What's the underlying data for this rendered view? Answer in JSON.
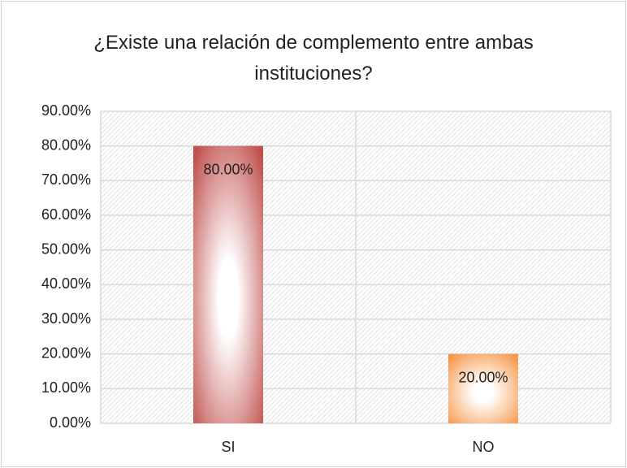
{
  "chart_data": {
    "type": "bar",
    "title": "¿Existe una relación de complemento entre ambas instituciones?",
    "categories": [
      "SI",
      "NO"
    ],
    "values": [
      80,
      20
    ],
    "value_labels": [
      "80.00%",
      "20.00%"
    ],
    "colors": [
      "#c0504d",
      "#f79646"
    ],
    "ylim": [
      0,
      90
    ],
    "yticks": [
      {
        "value": 0,
        "label": "0.00%"
      },
      {
        "value": 10,
        "label": "10.00%"
      },
      {
        "value": 20,
        "label": "20.00%"
      },
      {
        "value": 30,
        "label": "30.00%"
      },
      {
        "value": 40,
        "label": "40.00%"
      },
      {
        "value": 50,
        "label": "50.00%"
      },
      {
        "value": 60,
        "label": "60.00%"
      },
      {
        "value": 70,
        "label": "70.00%"
      },
      {
        "value": 80,
        "label": "80.00%"
      },
      {
        "value": 90,
        "label": "90.00%"
      }
    ],
    "grid": true
  }
}
